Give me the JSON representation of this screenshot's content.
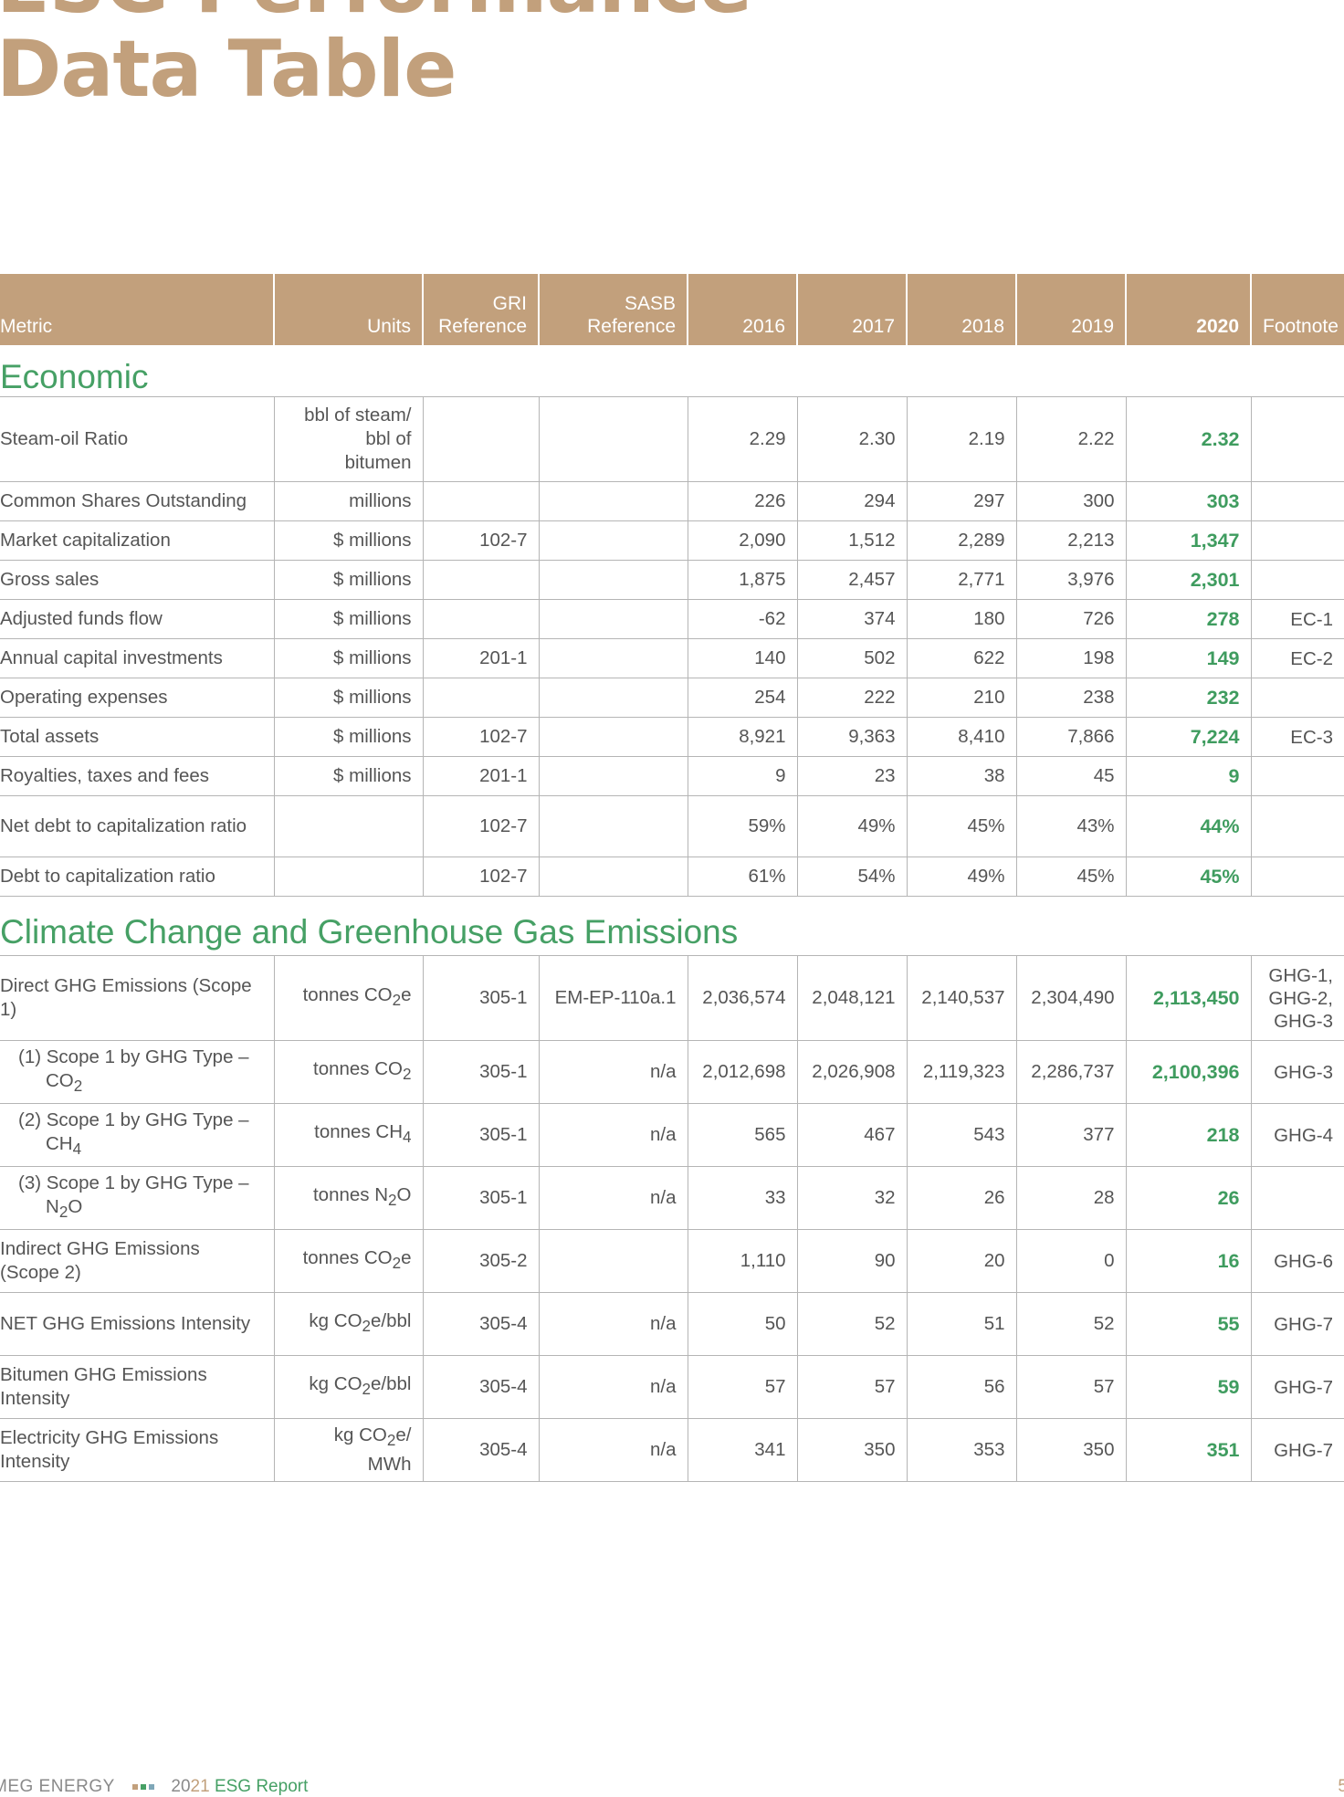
{
  "title_line1": "ESG Performance",
  "title_line2": "Data Table",
  "table": {
    "headers": {
      "metric": "Metric",
      "units": "Units",
      "gri_1": "GRI",
      "gri_2": "Reference",
      "sasb_1": "SASB",
      "sasb_2": "Reference",
      "y2016": "2016",
      "y2017": "2017",
      "y2018": "2018",
      "y2019": "2019",
      "y2020": "2020",
      "footnote": "Footnote"
    },
    "economic": {
      "heading": "Economic",
      "rows": [
        {
          "metric": "Steam-oil Ratio",
          "units": "bbl of steam/ bbl of bitumen",
          "gri": "",
          "sasb": "",
          "v2016": "2.29",
          "v2017": "2.30",
          "v2018": "2.19",
          "v2019": "2.22",
          "v2020": "2.32",
          "foot": ""
        },
        {
          "metric": "Common Shares Outstanding",
          "units": "millions",
          "gri": "",
          "sasb": "",
          "v2016": "226",
          "v2017": "294",
          "v2018": "297",
          "v2019": "300",
          "v2020": "303",
          "foot": ""
        },
        {
          "metric": "Market capitalization",
          "units": "$ millions",
          "gri": "102-7",
          "sasb": "",
          "v2016": "2,090",
          "v2017": "1,512",
          "v2018": "2,289",
          "v2019": "2,213",
          "v2020": "1,347",
          "foot": ""
        },
        {
          "metric": "Gross sales",
          "units": "$ millions",
          "gri": "",
          "sasb": "",
          "v2016": "1,875",
          "v2017": "2,457",
          "v2018": "2,771",
          "v2019": "3,976",
          "v2020": "2,301",
          "foot": ""
        },
        {
          "metric": "Adjusted funds flow",
          "units": "$ millions",
          "gri": "",
          "sasb": "",
          "v2016": "-62",
          "v2017": "374",
          "v2018": "180",
          "v2019": "726",
          "v2020": "278",
          "foot": "EC-1"
        },
        {
          "metric": "Annual capital investments",
          "units": "$ millions",
          "gri": "201-1",
          "sasb": "",
          "v2016": "140",
          "v2017": "502",
          "v2018": "622",
          "v2019": "198",
          "v2020": "149",
          "foot": "EC-2"
        },
        {
          "metric": "Operating expenses",
          "units": "$ millions",
          "gri": "",
          "sasb": "",
          "v2016": "254",
          "v2017": "222",
          "v2018": "210",
          "v2019": "238",
          "v2020": "232",
          "foot": ""
        },
        {
          "metric": "Total assets",
          "units": "$ millions",
          "gri": "102-7",
          "sasb": "",
          "v2016": "8,921",
          "v2017": "9,363",
          "v2018": "8,410",
          "v2019": "7,866",
          "v2020": "7,224",
          "foot": "EC-3"
        },
        {
          "metric": "Royalties, taxes and fees",
          "units": "$ millions",
          "gri": "201-1",
          "sasb": "",
          "v2016": "9",
          "v2017": "23",
          "v2018": "38",
          "v2019": "45",
          "v2020": "9",
          "foot": ""
        },
        {
          "metric": "Net debt to capitalization ratio",
          "units": "",
          "gri": "102-7",
          "sasb": "",
          "v2016": "59%",
          "v2017": "49%",
          "v2018": "45%",
          "v2019": "43%",
          "v2020": "44%",
          "foot": ""
        },
        {
          "metric": "Debt to capitalization ratio",
          "units": "",
          "gri": "102-7",
          "sasb": "",
          "v2016": "61%",
          "v2017": "54%",
          "v2018": "49%",
          "v2019": "45%",
          "v2020": "45%",
          "foot": ""
        }
      ]
    },
    "climate": {
      "heading": "Climate Change and Greenhouse Gas Emissions",
      "rows": [
        {
          "metric": "Direct GHG Emissions (Scope 1)",
          "units_pre": "tonnes CO",
          "units_sub": "2",
          "units_post": "e",
          "gri": "305-1",
          "sasb": "EM-EP-110a.1",
          "v2016": "2,036,574",
          "v2017": "2,048,121",
          "v2018": "2,140,537",
          "v2019": "2,304,490",
          "v2020": "2,113,450",
          "foot": "GHG-1, GHG-2, GHG-3"
        },
        {
          "metric_1": "(1) Scope 1 by GHG Type –",
          "metric_2": "CO",
          "metric_sub": "2",
          "metric_post": "",
          "units_pre": "tonnes CO",
          "units_sub": "2",
          "units_post": "",
          "gri": "305-1",
          "sasb": "n/a",
          "v2016": "2,012,698",
          "v2017": "2,026,908",
          "v2018": "2,119,323",
          "v2019": "2,286,737",
          "v2020": "2,100,396",
          "foot": "GHG-3"
        },
        {
          "metric_1": "(2) Scope 1 by GHG Type –",
          "metric_2": "CH",
          "metric_sub": "4",
          "metric_post": "",
          "units_pre": "tonnes CH",
          "units_sub": "4",
          "units_post": "",
          "gri": "305-1",
          "sasb": "n/a",
          "v2016": "565",
          "v2017": "467",
          "v2018": "543",
          "v2019": "377",
          "v2020": "218",
          "foot": "GHG-4"
        },
        {
          "metric_1": "(3) Scope 1 by GHG Type –",
          "metric_2": "N",
          "metric_sub": "2",
          "metric_post": "O",
          "units_pre": "tonnes N",
          "units_sub": "2",
          "units_post": "O",
          "gri": "305-1",
          "sasb": "n/a",
          "v2016": "33",
          "v2017": "32",
          "v2018": "26",
          "v2019": "28",
          "v2020": "26",
          "foot": ""
        },
        {
          "metric": "Indirect GHG Emissions (Scope 2)",
          "units_pre": "tonnes CO",
          "units_sub": "2",
          "units_post": "e",
          "gri": "305-2",
          "sasb": "",
          "v2016": "1,110",
          "v2017": "90",
          "v2018": "20",
          "v2019": "0",
          "v2020": "16",
          "foot": "GHG-6"
        },
        {
          "metric": "NET GHG Emissions Intensity",
          "units_pre": "kg CO",
          "units_sub": "2",
          "units_post": "e/bbl",
          "gri": "305-4",
          "sasb": "n/a",
          "v2016": "50",
          "v2017": "52",
          "v2018": "51",
          "v2019": "52",
          "v2020": "55",
          "foot": "GHG-7"
        },
        {
          "metric": "Bitumen GHG Emissions Intensity",
          "units_pre": "kg CO",
          "units_sub": "2",
          "units_post": "e/bbl",
          "gri": "305-4",
          "sasb": "n/a",
          "v2016": "57",
          "v2017": "57",
          "v2018": "56",
          "v2019": "57",
          "v2020": "59",
          "foot": "GHG-7"
        },
        {
          "metric": "Electricity GHG Emissions Intensity",
          "units_pre": "kg CO",
          "units_sub": "2",
          "units_post": "e/ MWh",
          "gri": "305-4",
          "sasb": "n/a",
          "v2016": "341",
          "v2017": "350",
          "v2018": "353",
          "v2019": "350",
          "v2020": "351",
          "foot": "GHG-7"
        }
      ]
    }
  },
  "footer": {
    "brand": "MEG ENERGY",
    "year_a": "20",
    "year_b": "21",
    "report": "ESG Report",
    "page": "5"
  },
  "colors": {
    "accent_tan": "#c2a07c",
    "accent_green": "#46a065",
    "value_green": "#3f9c5f"
  }
}
